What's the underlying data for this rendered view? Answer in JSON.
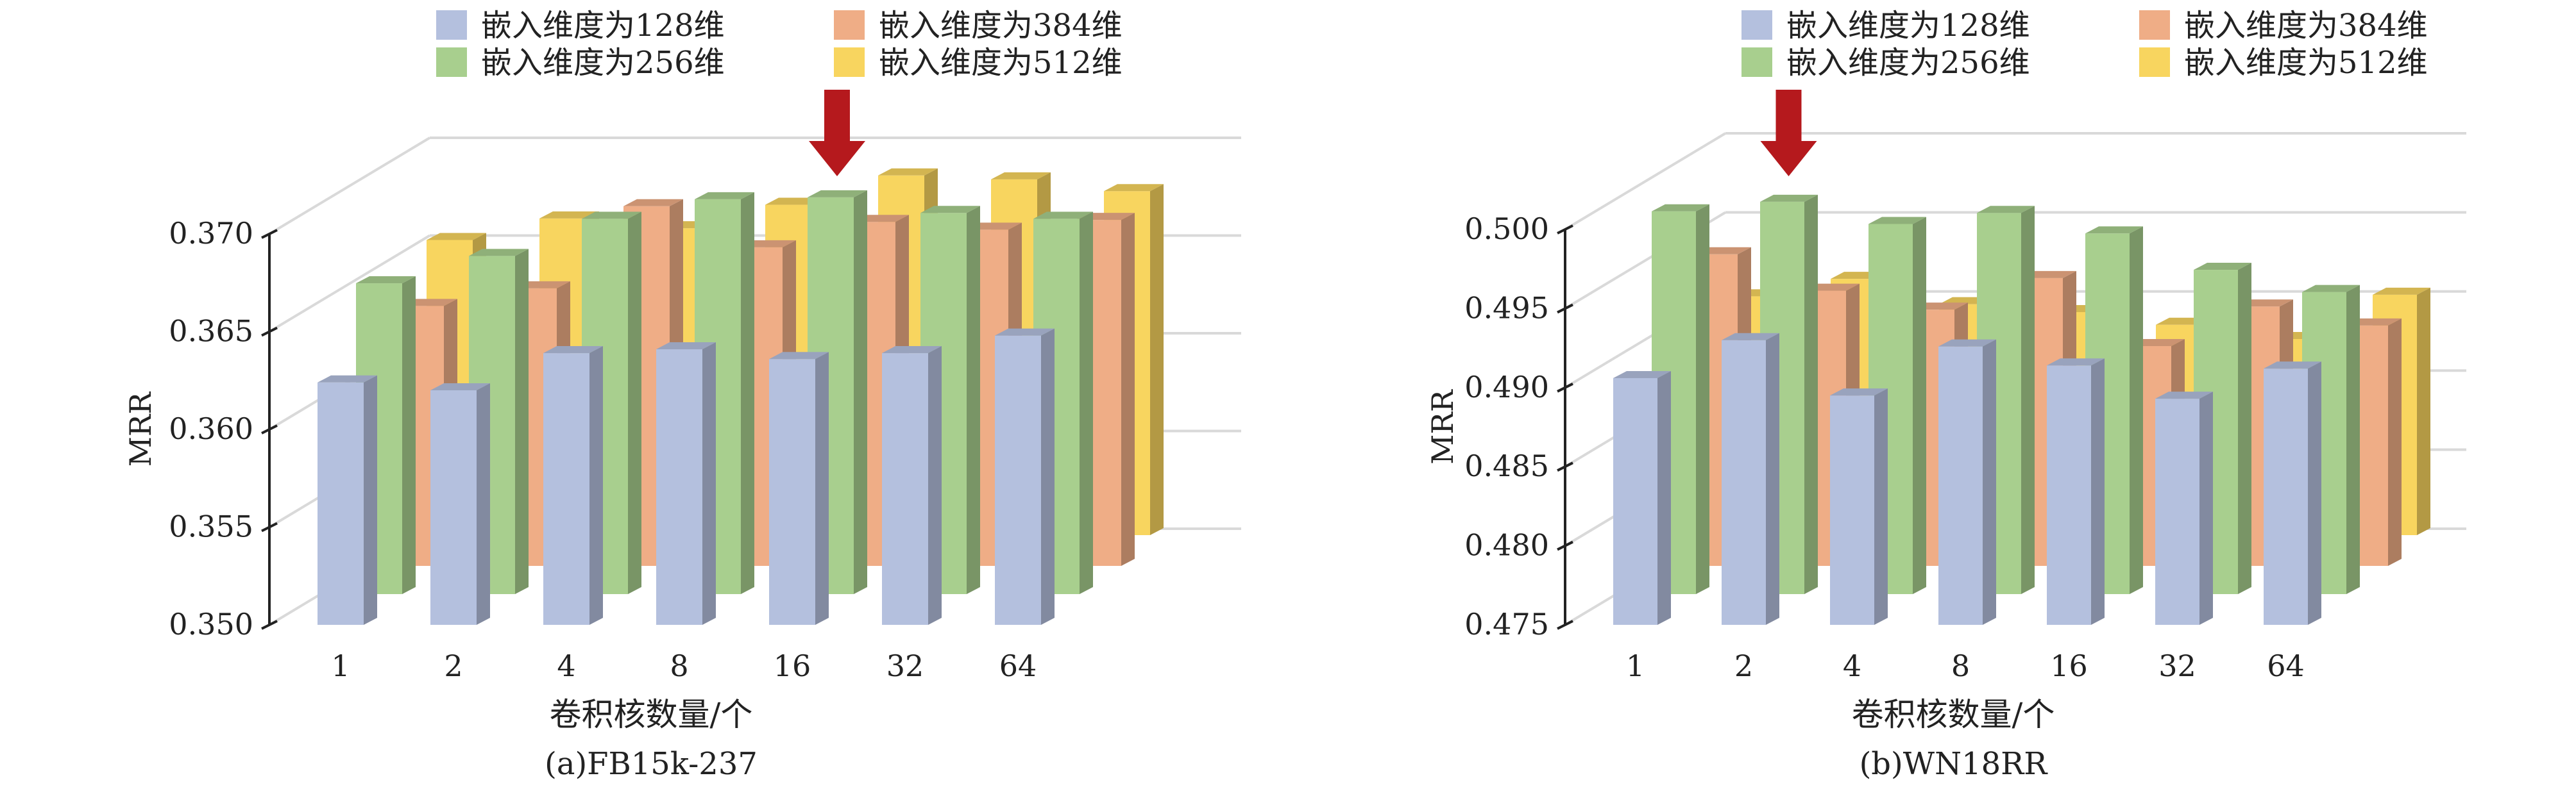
{
  "colors": {
    "s128": "#b4c0de",
    "s384": "#efad86",
    "s256": "#a8cf8e",
    "s512": "#f8d55f",
    "arrow": "#b5191d",
    "grid": "#d9d9d9",
    "axis": "#222222"
  },
  "chart_data": [
    {
      "type": "bar",
      "projection": "3d-clustered",
      "caption": "(a)FB15k-237",
      "xlabel": "卷积核数量/个",
      "ylabel": "MRR",
      "categories": [
        "1",
        "2",
        "4",
        "8",
        "16",
        "32",
        "64"
      ],
      "ylim": [
        0.35,
        0.37
      ],
      "yticks": [
        "0.370",
        "0.365",
        "0.360",
        "0.355",
        "0.350"
      ],
      "ytick_values": [
        0.37,
        0.365,
        0.36,
        0.355,
        0.35
      ],
      "grid": true,
      "legend_position": "top",
      "legend": [
        {
          "name": "嵌入维度为128维",
          "color_key": "s128"
        },
        {
          "name": "嵌入维度为384维",
          "color_key": "s384"
        },
        {
          "name": "嵌入维度为256维",
          "color_key": "s256"
        },
        {
          "name": "嵌入维度为512维",
          "color_key": "s512"
        }
      ],
      "series": [
        {
          "name": "嵌入维度为128维",
          "color_key": "s128",
          "values": [
            0.3624,
            0.362,
            0.3639,
            0.3641,
            0.3636,
            0.3639,
            0.3648
          ]
        },
        {
          "name": "嵌入维度为256维",
          "color_key": "s256",
          "values": [
            0.3659,
            0.3673,
            0.3692,
            0.3702,
            0.3703,
            0.3695,
            0.3692
          ]
        },
        {
          "name": "嵌入维度为384维",
          "color_key": "s384",
          "values": [
            0.3633,
            0.3642,
            0.3684,
            0.3663,
            0.3676,
            0.3672,
            0.3677
          ]
        },
        {
          "name": "嵌入维度为512维",
          "color_key": "s512",
          "values": [
            0.3651,
            0.3662,
            0.3657,
            0.3669,
            0.3684,
            0.3682,
            0.3676
          ]
        }
      ],
      "highlight_category": "16"
    },
    {
      "type": "bar",
      "projection": "3d-clustered",
      "caption": "(b)WN18RR",
      "xlabel": "卷积核数量/个",
      "ylabel": "MRR",
      "categories": [
        "1",
        "2",
        "4",
        "8",
        "16",
        "32",
        "64"
      ],
      "ylim": [
        0.475,
        0.5
      ],
      "yticks": [
        "0.500",
        "0.495",
        "0.490",
        "0.485",
        "0.480",
        "0.475"
      ],
      "ytick_values": [
        0.5,
        0.495,
        0.49,
        0.485,
        0.48,
        0.475
      ],
      "grid": true,
      "legend_position": "top",
      "legend": [
        {
          "name": "嵌入维度为128维",
          "color_key": "s128"
        },
        {
          "name": "嵌入维度为384维",
          "color_key": "s384"
        },
        {
          "name": "嵌入维度为256维",
          "color_key": "s256"
        },
        {
          "name": "嵌入维度为512维",
          "color_key": "s512"
        }
      ],
      "series": [
        {
          "name": "嵌入维度为128维",
          "color_key": "s128",
          "values": [
            0.4906,
            0.493,
            0.4895,
            0.4926,
            0.4914,
            0.4893,
            0.4912
          ]
        },
        {
          "name": "嵌入维度为256维",
          "color_key": "s256",
          "values": [
            0.4992,
            0.4998,
            0.4984,
            0.4991,
            0.4978,
            0.4955,
            0.4941
          ]
        },
        {
          "name": "嵌入维度为384维",
          "color_key": "s384",
          "values": [
            0.4947,
            0.4924,
            0.4912,
            0.4932,
            0.4889,
            0.4914,
            0.4902
          ]
        },
        {
          "name": "嵌入维度为512维",
          "color_key": "s512",
          "values": [
            0.4901,
            0.4912,
            0.4896,
            0.4891,
            0.4883,
            0.4874,
            0.4902
          ]
        }
      ],
      "highlight_category": "2"
    }
  ]
}
